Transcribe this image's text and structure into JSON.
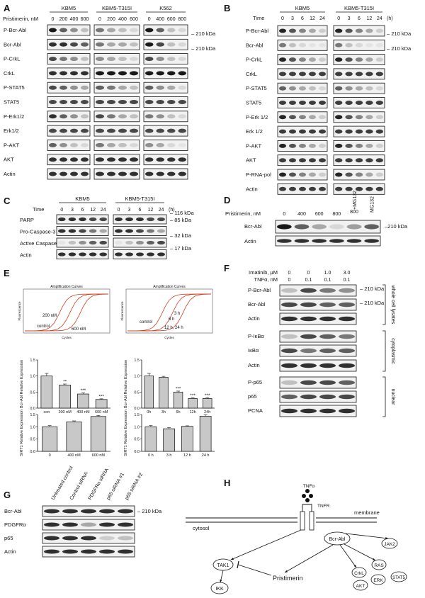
{
  "panels": {
    "A": {
      "letter": "A",
      "groups": [
        "KBM5",
        "KBM5-T315I",
        "K562"
      ],
      "dose_label": "Pristimerin, nM",
      "doses": [
        [
          "0",
          "200",
          "400",
          "600"
        ],
        [
          "0",
          "200",
          "400",
          "600"
        ],
        [
          "0",
          "400",
          "600",
          "800"
        ]
      ],
      "rows": [
        "P-Bcr-Abl",
        "Bcr-Abl",
        "P-CrkL",
        "CrkL",
        "P-STAT5",
        "STAT5",
        "P-Erk1/2",
        "Erk1/2",
        "P-AKT",
        "AKT",
        "Actin"
      ],
      "markers": [
        "210 kDa",
        "210 kDa"
      ]
    },
    "B": {
      "letter": "B",
      "groups": [
        "KBM5",
        "KBM5-T315I"
      ],
      "time_label": "Time",
      "times": [
        "0",
        "3",
        "6",
        "12",
        "24"
      ],
      "unit": "(h)",
      "rows": [
        "P-Bcr-Abl",
        "Bcr-Abl",
        "P-CrkL",
        "CrkL",
        "P-STAT5",
        "STAT5",
        "P-Erk 1/2",
        "Erk 1/2",
        "P-AKT",
        "AKT",
        "P-RNA-pol",
        "Actin"
      ],
      "markers": [
        "210 kDa",
        "210 kDa"
      ]
    },
    "C": {
      "letter": "C",
      "groups": [
        "KBM5",
        "KBM5-T315I"
      ],
      "time_label": "Time",
      "times": [
        "0",
        "3",
        "6",
        "12",
        "24"
      ],
      "unit": "(h)",
      "rows": [
        "PARP",
        "Pro-Caspase-3",
        "Active Caspase-3",
        "Actin"
      ],
      "markers": [
        "116 kDa",
        "85 kDa",
        "32 kDa",
        "17 kDa"
      ]
    },
    "D": {
      "letter": "D",
      "dose_label": "Pristimerin, nM",
      "doses": [
        "0",
        "400",
        "600",
        "800"
      ],
      "extra_lanes": [
        "800 +MG132",
        "MG132"
      ],
      "rows": [
        "Bcr-Abl",
        "Actin"
      ],
      "marker": "210 kDa"
    },
    "E": {
      "letter": "E",
      "amp_title": "Amplification Curves",
      "amp_xlabel": "Cycles",
      "amp_ylabel": "Fluorescence",
      "amp_left_labels": [
        "200 nM",
        "control",
        "600 nM"
      ],
      "amp_right_labels": [
        "3 h",
        "6 h",
        "control",
        "12 h, 24 h"
      ]
    },
    "F": {
      "letter": "F",
      "treatments": [
        {
          "label": "Imatinib, μM",
          "values": [
            "0",
            "0",
            "1.0",
            "3.0"
          ]
        },
        {
          "label": "TNFα, nM",
          "values": [
            "0",
            "0.1",
            "0.1",
            "0.1"
          ]
        }
      ],
      "rows": [
        "P-Bcr-Abl",
        "Bcr-Abl",
        "Actin",
        "P-IκBα",
        "IκBα",
        "Actin",
        "P-p65",
        "p65",
        "PCNA"
      ],
      "markers": [
        "210 kDa",
        "210 kDa"
      ],
      "fractions": [
        "whole cell lysates",
        "cytoplasmic",
        "nuclear"
      ]
    },
    "G": {
      "letter": "G",
      "lanes": [
        "Untreated control",
        "Control siRNA",
        "PDGFRα siRNA",
        "p65 siRNA #1",
        "p65 siRNA #2"
      ],
      "rows": [
        "Bcr-Abl",
        "PDGFRα",
        "p65",
        "Actin"
      ],
      "marker": "210 kDa"
    },
    "H": {
      "letter": "H",
      "labels": {
        "tnf": "TNFα",
        "tnfr": "TNFR",
        "membrane": "membrane",
        "cytosol": "cytosol",
        "nuclear": "nuclear",
        "tak1": "TAK1",
        "ikk": "IKK",
        "pristimerin": "Pristimerin",
        "bcrabl": "Bcr-Abl",
        "jak2": "JAK2",
        "ras": "RAS",
        "crkl": "CrkL",
        "akt": "AKT",
        "erk": "ERK",
        "stat5": "STAT5",
        "survival": "cell survival, growth",
        "genes": "Survivin, Bcl-2, Bcl-XL, Mcl-1 etc.",
        "p50": "P50",
        "p65": "P65",
        "ikba": "IκBα"
      }
    }
  },
  "charts": {
    "E_bar_dose": {
      "type": "bar",
      "ylabel": "Bcr-Abl Relative Expression",
      "ylim": [
        0,
        1.5
      ],
      "yticks": [
        "0.0",
        "0.5",
        "1.0",
        "1.5"
      ],
      "categories": [
        "con",
        "200 nM",
        "400 nM",
        "600 nM"
      ],
      "values": [
        1.0,
        0.72,
        0.44,
        0.27
      ],
      "errors": [
        0.08,
        0.03,
        0.03,
        0.02
      ],
      "annotations": [
        "",
        "**",
        "***",
        "***"
      ]
    },
    "E_bar_time": {
      "type": "bar",
      "ylabel": "Bcr-Abl Relative Expression",
      "ylim": [
        0,
        1.5
      ],
      "yticks": [
        "0.0",
        "0.5",
        "1.0",
        "1.5"
      ],
      "categories": [
        "0h",
        "3h",
        "6h",
        "12h",
        "24h"
      ],
      "values": [
        1.0,
        0.96,
        0.5,
        0.3,
        0.3
      ],
      "errors": [
        0.08,
        0.03,
        0.03,
        0.02,
        0.02
      ],
      "annotations": [
        "",
        "",
        "***",
        "***",
        "***"
      ]
    },
    "E_sirt_dose": {
      "type": "bar",
      "ylabel": "SIRT1 Relative Expression",
      "ylim": [
        0,
        1.5
      ],
      "yticks": [
        "0.0",
        "0.5",
        "1.0",
        "1.5"
      ],
      "categories": [
        "0",
        "400 nM",
        "600 nM"
      ],
      "values": [
        1.0,
        1.2,
        1.42
      ],
      "errors": [
        0.05,
        0.04,
        0.04
      ],
      "annotations": [
        "",
        "",
        ""
      ]
    },
    "E_sirt_time": {
      "type": "bar",
      "ylabel": "SIRT1 Relative Expression",
      "ylim": [
        0,
        1.5
      ],
      "yticks": [
        "0.0",
        "0.5",
        "1.0",
        "1.5"
      ],
      "categories": [
        "0 h",
        "3 h",
        "12 h",
        "24 h"
      ],
      "values": [
        1.0,
        0.92,
        1.02,
        1.43
      ],
      "errors": [
        0.05,
        0.05,
        0.02,
        0.05
      ],
      "annotations": [
        "",
        "",
        "",
        ""
      ]
    }
  }
}
